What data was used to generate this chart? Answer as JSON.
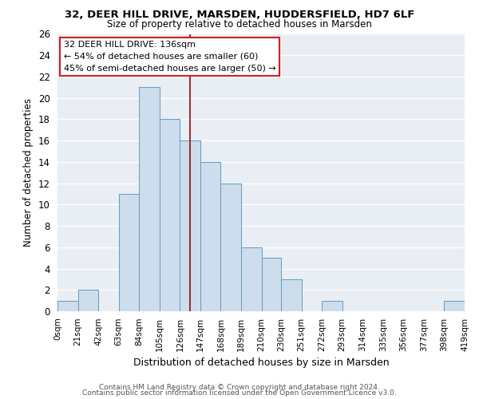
{
  "title": "32, DEER HILL DRIVE, MARSDEN, HUDDERSFIELD, HD7 6LF",
  "subtitle": "Size of property relative to detached houses in Marsden",
  "xlabel": "Distribution of detached houses by size in Marsden",
  "ylabel": "Number of detached properties",
  "bin_edges": [
    0,
    21,
    42,
    63,
    84,
    105,
    126,
    147,
    168,
    189,
    210,
    230,
    251,
    272,
    293,
    314,
    335,
    356,
    377,
    398,
    419
  ],
  "bar_heights": [
    1,
    2,
    0,
    11,
    21,
    18,
    16,
    14,
    12,
    6,
    5,
    3,
    0,
    1,
    0,
    0,
    0,
    0,
    0,
    1
  ],
  "bar_color": "#ccdded",
  "bar_edge_color": "#6699bb",
  "vline_x": 136,
  "vline_color": "#993333",
  "ylim": [
    0,
    26
  ],
  "yticks": [
    0,
    2,
    4,
    6,
    8,
    10,
    12,
    14,
    16,
    18,
    20,
    22,
    24,
    26
  ],
  "xtick_labels": [
    "0sqm",
    "21sqm",
    "42sqm",
    "63sqm",
    "84sqm",
    "105sqm",
    "126sqm",
    "147sqm",
    "168sqm",
    "189sqm",
    "210sqm",
    "230sqm",
    "251sqm",
    "272sqm",
    "293sqm",
    "314sqm",
    "335sqm",
    "356sqm",
    "377sqm",
    "398sqm",
    "419sqm"
  ],
  "annotation_title": "32 DEER HILL DRIVE: 136sqm",
  "annotation_line1": "← 54% of detached houses are smaller (60)",
  "annotation_line2": "45% of semi-detached houses are larger (50) →",
  "annotation_box_facecolor": "#ffffff",
  "annotation_box_edgecolor": "#cc2222",
  "footer1": "Contains HM Land Registry data © Crown copyright and database right 2024.",
  "footer2": "Contains public sector information licensed under the Open Government Licence v3.0.",
  "bg_color": "#ffffff",
  "plot_bg_color": "#e8eef4",
  "grid_color": "#ffffff"
}
